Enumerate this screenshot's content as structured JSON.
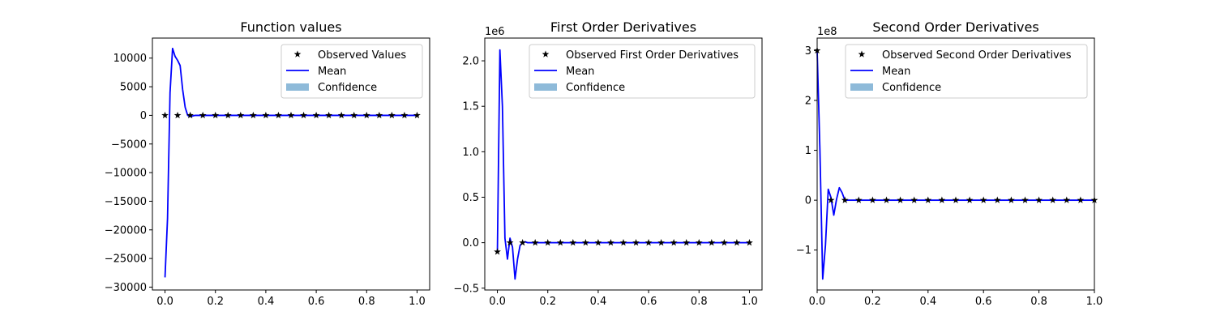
{
  "chart_data": [
    {
      "type": "line",
      "title": "Function values",
      "offset_label": "",
      "xlim": [
        -0.05,
        1.05
      ],
      "ylim": [
        -30500,
        13500
      ],
      "xticks": [
        0.0,
        0.2,
        0.4,
        0.6,
        0.8,
        1.0
      ],
      "xtick_labels": [
        "0.0",
        "0.2",
        "0.4",
        "0.6",
        "0.8",
        "1.0"
      ],
      "yticks": [
        -30000,
        -25000,
        -20000,
        -15000,
        -10000,
        -5000,
        0,
        5000,
        10000
      ],
      "ytick_labels": [
        "−30000",
        "−25000",
        "−20000",
        "−15000",
        "−10000",
        "−5000",
        "0",
        "5000",
        "10000"
      ],
      "legend_position": "top-right",
      "legend": [
        "Observed Values",
        "Mean",
        "Confidence"
      ],
      "observed": {
        "name": "Observed Values",
        "x": [
          0.0,
          0.05,
          0.1,
          0.15,
          0.2,
          0.25,
          0.3,
          0.35,
          0.4,
          0.45,
          0.5,
          0.55,
          0.6,
          0.65,
          0.7,
          0.75,
          0.8,
          0.85,
          0.9,
          0.95,
          1.0
        ],
        "y": [
          0,
          0,
          0,
          0,
          0,
          0,
          0,
          0,
          0,
          0,
          0,
          0,
          0,
          0,
          0,
          0,
          0,
          0,
          0,
          0,
          0
        ]
      },
      "mean": {
        "name": "Mean",
        "x": [
          0.0,
          0.01,
          0.02,
          0.03,
          0.04,
          0.05,
          0.06,
          0.07,
          0.08,
          0.09,
          0.1,
          0.11,
          0.12,
          0.15,
          0.2,
          0.3,
          0.4,
          0.5,
          0.6,
          0.7,
          0.8,
          0.9,
          1.0
        ],
        "y": [
          -28300,
          -18000,
          4000,
          11700,
          10300,
          9600,
          8700,
          4500,
          1400,
          0,
          -200,
          -100,
          0,
          0,
          0,
          0,
          0,
          0,
          0,
          0,
          0,
          0,
          0
        ]
      },
      "colors": {
        "mean": "#0000ff",
        "observed": "#000000",
        "confidence": "#8ebad9"
      }
    },
    {
      "type": "line",
      "title": "First Order Derivatives",
      "offset_label": "1e6",
      "xlim": [
        -0.05,
        1.05
      ],
      "ylim": [
        -0.52,
        2.25
      ],
      "xticks": [
        0.0,
        0.2,
        0.4,
        0.6,
        0.8,
        1.0
      ],
      "xtick_labels": [
        "0.0",
        "0.2",
        "0.4",
        "0.6",
        "0.8",
        "1.0"
      ],
      "yticks": [
        -0.5,
        0.0,
        0.5,
        1.0,
        1.5,
        2.0
      ],
      "ytick_labels": [
        "−0.5",
        "0.0",
        "0.5",
        "1.0",
        "1.5",
        "2.0"
      ],
      "legend_position": "top-right",
      "legend": [
        "Observed First Order Derivatives",
        "Mean",
        "Confidence"
      ],
      "observed": {
        "name": "Observed First Order Derivatives",
        "x": [
          0.0,
          0.05,
          0.1,
          0.15,
          0.2,
          0.25,
          0.3,
          0.35,
          0.4,
          0.45,
          0.5,
          0.55,
          0.6,
          0.65,
          0.7,
          0.75,
          0.8,
          0.85,
          0.9,
          0.95,
          1.0
        ],
        "y": [
          -0.1,
          0,
          0,
          0,
          0,
          0,
          0,
          0,
          0,
          0,
          0,
          0,
          0,
          0,
          0,
          0,
          0,
          0,
          0,
          0,
          0
        ]
      },
      "mean": {
        "name": "Mean",
        "x": [
          0.0,
          0.01,
          0.02,
          0.03,
          0.04,
          0.05,
          0.06,
          0.07,
          0.08,
          0.09,
          0.1,
          0.11,
          0.12,
          0.15,
          0.2,
          0.3,
          0.4,
          0.5,
          0.6,
          0.7,
          0.8,
          0.9,
          1.0
        ],
        "y": [
          -0.1,
          2.12,
          1.5,
          0.05,
          -0.18,
          0.05,
          -0.05,
          -0.4,
          -0.18,
          -0.03,
          0.0,
          0.01,
          0.0,
          0.0,
          0.0,
          0.0,
          0.0,
          0.0,
          0.0,
          0.0,
          0.0,
          0.0,
          0.0
        ]
      },
      "colors": {
        "mean": "#0000ff",
        "observed": "#000000",
        "confidence": "#8ebad9"
      }
    },
    {
      "type": "line",
      "title": "Second Order Derivatives",
      "offset_label": "1e8",
      "xlim": [
        0.0,
        1.0
      ],
      "ylim": [
        -1.8,
        3.25
      ],
      "xticks": [
        0.0,
        0.2,
        0.4,
        0.6,
        0.8,
        1.0
      ],
      "xtick_labels": [
        "0.0",
        "0.2",
        "0.4",
        "0.6",
        "0.8",
        "1.0"
      ],
      "yticks": [
        -1,
        0,
        1,
        2,
        3
      ],
      "ytick_labels": [
        "−1",
        "0",
        "1",
        "2",
        "3"
      ],
      "legend_position": "top-right",
      "legend": [
        "Observed Second Order Derivatives",
        "Mean",
        "Confidence"
      ],
      "observed": {
        "name": "Observed Second Order Derivatives",
        "x": [
          0.0,
          0.05,
          0.1,
          0.15,
          0.2,
          0.25,
          0.3,
          0.35,
          0.4,
          0.45,
          0.5,
          0.55,
          0.6,
          0.65,
          0.7,
          0.75,
          0.8,
          0.85,
          0.9,
          0.95,
          1.0
        ],
        "y": [
          3.0,
          0,
          0,
          0,
          0,
          0,
          0,
          0,
          0,
          0,
          0,
          0,
          0,
          0,
          0,
          0,
          0,
          0,
          0,
          0,
          0
        ]
      },
      "mean": {
        "name": "Mean",
        "x": [
          0.0,
          0.01,
          0.02,
          0.03,
          0.04,
          0.05,
          0.06,
          0.07,
          0.08,
          0.09,
          0.1,
          0.12,
          0.15,
          0.2,
          0.3,
          0.4,
          0.5,
          0.6,
          0.7,
          0.8,
          0.9,
          1.0
        ],
        "y": [
          3.0,
          1.0,
          -1.58,
          -0.9,
          0.22,
          0.05,
          -0.3,
          0.02,
          0.25,
          0.15,
          0.0,
          0.0,
          0.0,
          0.0,
          0.0,
          0.0,
          0.0,
          0.0,
          0.0,
          0.0,
          0.0,
          0.0
        ]
      },
      "colors": {
        "mean": "#0000ff",
        "observed": "#000000",
        "confidence": "#8ebad9"
      }
    }
  ]
}
